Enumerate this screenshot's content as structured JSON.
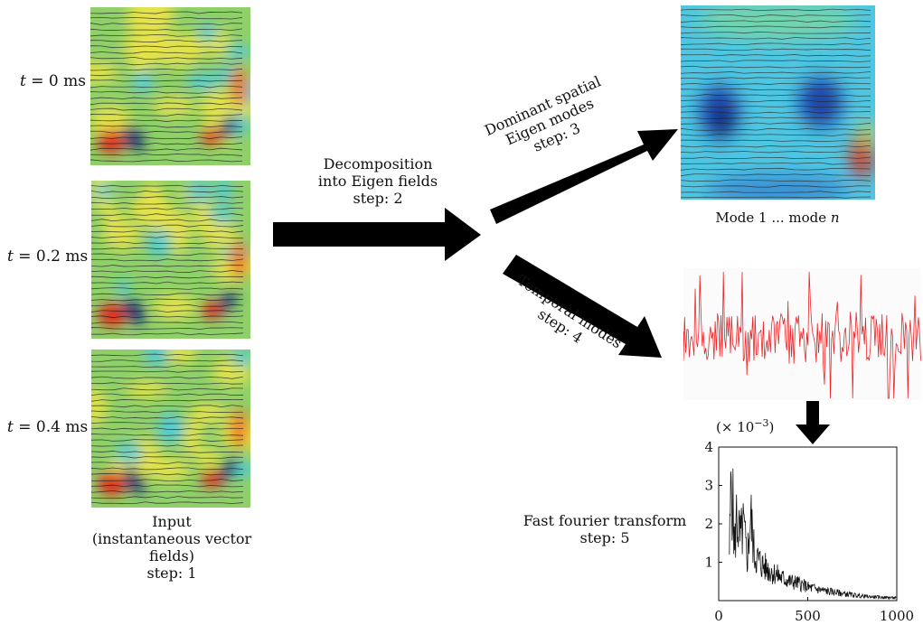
{
  "input_panel": {
    "frames": [
      {
        "t_var": "t",
        "t_rest": " = 0 ms"
      },
      {
        "t_var": "t",
        "t_rest": " = 0.2 ms"
      },
      {
        "t_var": "t",
        "t_rest": " = 0.4 ms"
      }
    ],
    "caption_line1": "Input",
    "caption_line2": "(instantaneous vector fields)",
    "caption_line3": "step: 1"
  },
  "decomposition": {
    "line1": "Decomposition",
    "line2": "into Eigen fields",
    "line3": "step: 2"
  },
  "spatial": {
    "line1": "Dominant spatial",
    "line2": "Eigen modes",
    "line3": "step: 3",
    "mode_caption_prefix": "Mode 1 ...  mode ",
    "mode_caption_var": "n"
  },
  "temporal": {
    "line1": "Temporal modes",
    "line2": "step: 4"
  },
  "fft": {
    "line1": "Fast fourier transform",
    "line2": "step: 5"
  },
  "colors": {
    "field_base": "#8fd06a",
    "field_yellow": "#e8e34a",
    "field_cyan": "#4cc9e0",
    "field_red": "#e02a1a",
    "field_blue": "#12307a",
    "signal_red": "#e8262a",
    "arrow": "#000000"
  },
  "chart_data": {
    "type": "line",
    "ylabel_multiplier": "(× 10−3)",
    "ylabel_multiplier_base": "(× 10",
    "ylabel_multiplier_exp": "−3",
    "ylabel_multiplier_close": ")",
    "xlim": [
      0,
      1000
    ],
    "ylim": [
      0,
      4
    ],
    "xticks": [
      "0",
      "500",
      "1000"
    ],
    "yticks": [
      "1",
      "2",
      "3",
      "4"
    ],
    "series": [
      {
        "x": [
          60,
          70,
          80,
          90,
          100,
          120,
          140,
          160,
          180,
          200,
          250,
          300,
          350,
          400,
          450,
          500,
          550,
          600,
          650,
          700,
          750,
          800,
          850,
          900,
          950,
          1000
        ],
        "values": [
          1.2,
          3.1,
          2.4,
          1.3,
          2.2,
          1.6,
          1.9,
          1.1,
          2.2,
          1.2,
          0.9,
          0.75,
          0.6,
          0.5,
          0.45,
          0.35,
          0.3,
          0.25,
          0.22,
          0.18,
          0.15,
          0.12,
          0.1,
          0.09,
          0.08,
          0.07
        ]
      }
    ]
  }
}
